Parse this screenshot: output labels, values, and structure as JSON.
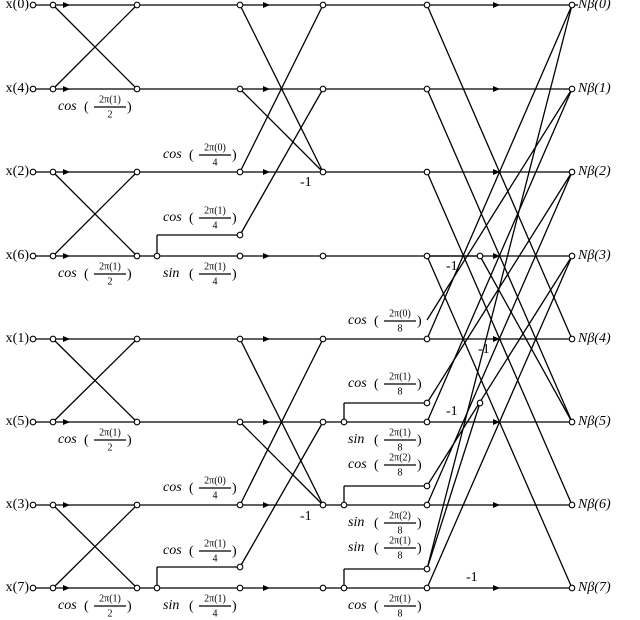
{
  "inputs": [
    "x(0)",
    "x(4)",
    "x(2)",
    "x(6)",
    "x(1)",
    "x(5)",
    "x(3)",
    "x(7)"
  ],
  "outputs": [
    "Nβ(0)",
    "Nβ(1)",
    "Nβ(2)",
    "Nβ(3)",
    "Nβ(4)",
    "Nβ(5)",
    "Nβ(6)",
    "Nβ(7)"
  ],
  "coefficients": [
    {
      "fn": "cos",
      "num": "2π(1)",
      "den": "2"
    },
    {
      "fn": "cos",
      "num": "2π(0)",
      "den": "4"
    },
    {
      "fn": "cos",
      "num": "2π(1)",
      "den": "4"
    },
    {
      "fn": "cos",
      "num": "2π(1)",
      "den": "2"
    },
    {
      "fn": "sin",
      "num": "2π(1)",
      "den": "4"
    },
    {
      "fn": "cos",
      "num": "2π(0)",
      "den": "8"
    },
    {
      "fn": "cos",
      "num": "2π(1)",
      "den": "8"
    },
    {
      "fn": "cos",
      "num": "2π(1)",
      "den": "2"
    },
    {
      "fn": "sin",
      "num": "2π(1)",
      "den": "8"
    },
    {
      "fn": "cos",
      "num": "2π(2)",
      "den": "8"
    },
    {
      "fn": "cos",
      "num": "2π(0)",
      "den": "4"
    },
    {
      "fn": "sin",
      "num": "2π(2)",
      "den": "8"
    },
    {
      "fn": "sin",
      "num": "2π(1)",
      "den": "8"
    },
    {
      "fn": "cos",
      "num": "2π(1)",
      "den": "4"
    },
    {
      "fn": "cos",
      "num": "2π(1)",
      "den": "2"
    },
    {
      "fn": "sin",
      "num": "2π(1)",
      "den": "4"
    },
    {
      "fn": "cos",
      "num": "2π(1)",
      "den": "8"
    }
  ],
  "negations": [
    "-1",
    "-1",
    "-1",
    "-1",
    "-1",
    "-1"
  ]
}
